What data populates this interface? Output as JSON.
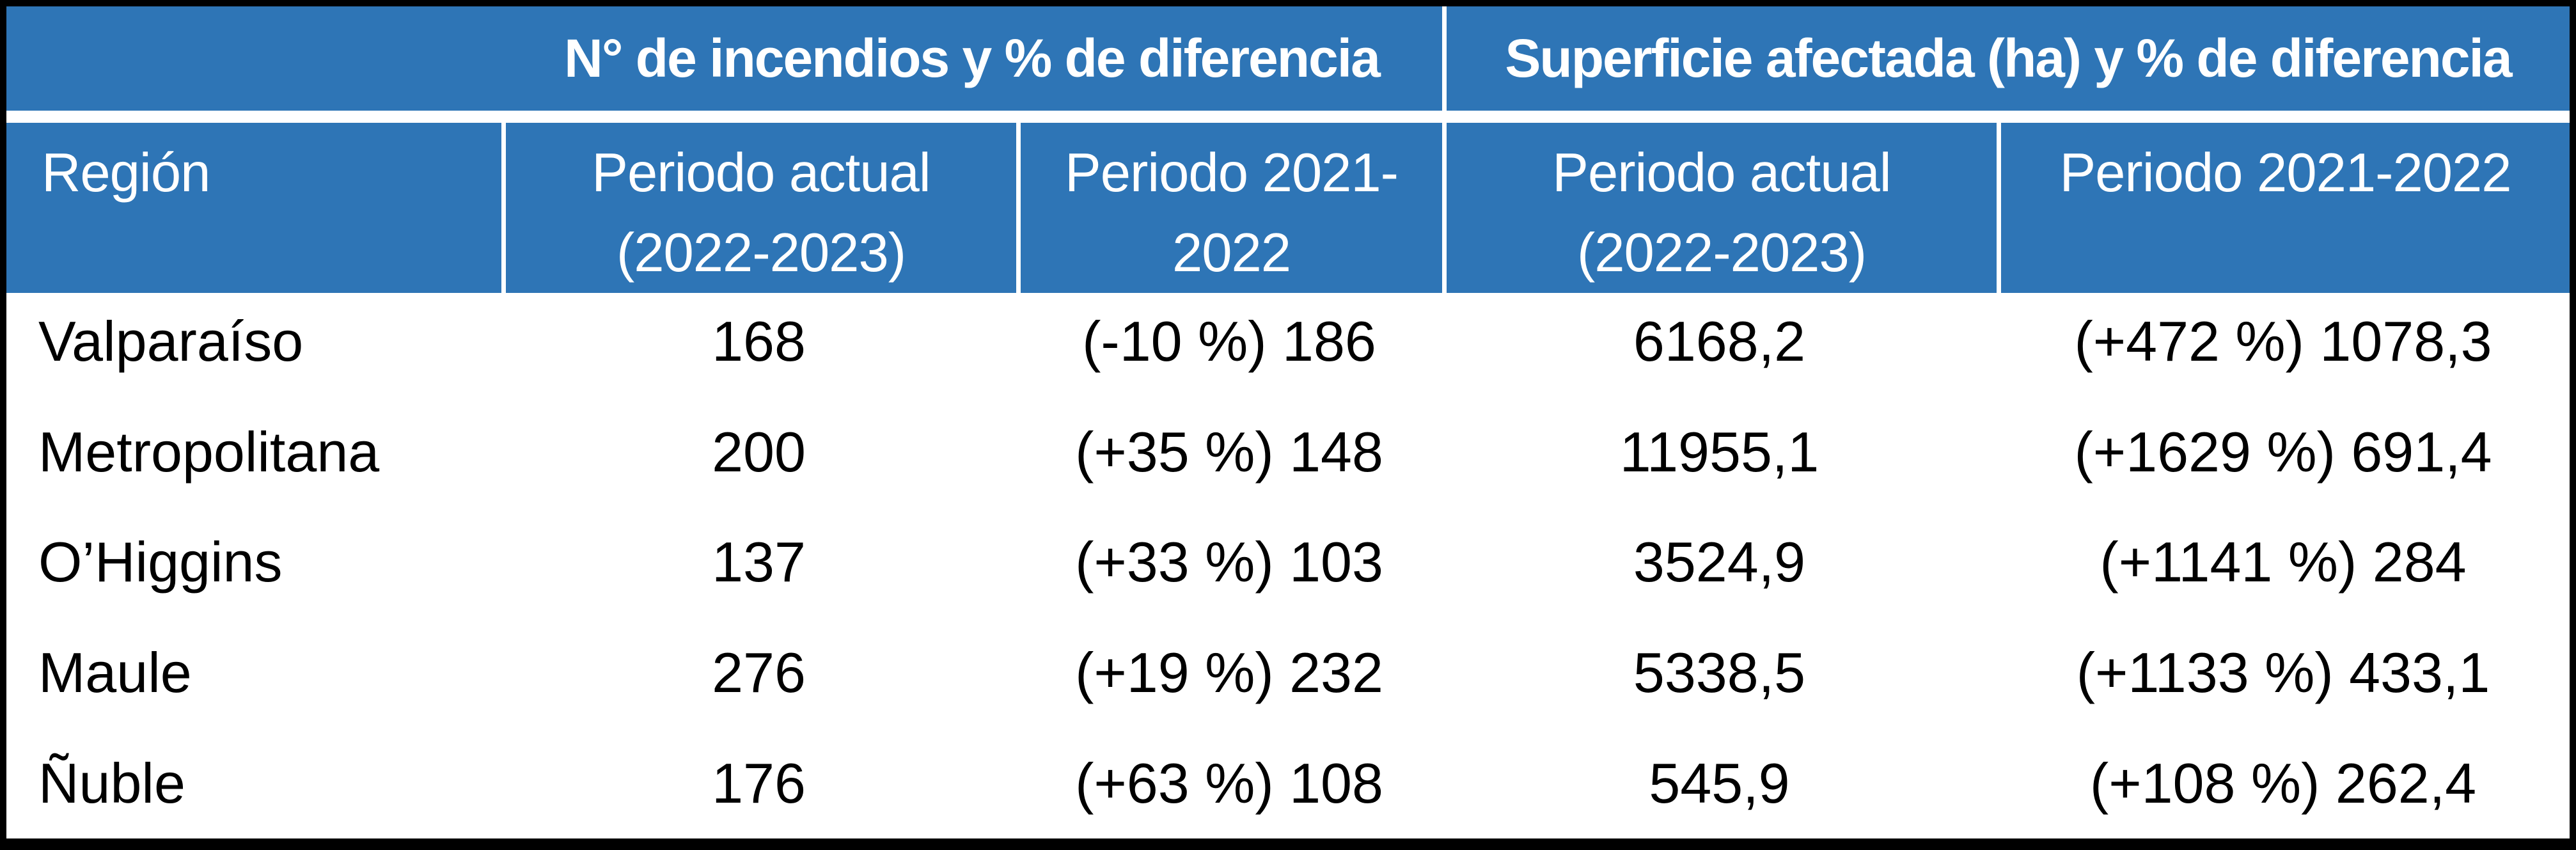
{
  "chart_data": {
    "type": "table",
    "group_headers": [
      "N° de incendios y % de diferencia",
      "Superficie afectada (ha) y % de diferencia"
    ],
    "columns": [
      "Región",
      "Periodo actual (2022-2023)",
      "Periodo 2021-2022",
      "Periodo actual (2022-2023)",
      "Periodo 2021-2022"
    ],
    "rows": [
      [
        "Valparaíso",
        "168",
        "(-10 %) 186",
        "6168,2",
        "(+472 %) 1078,3"
      ],
      [
        "Metropolitana",
        "200",
        "(+35 %) 148",
        "11955,1",
        "(+1629 %) 691,4"
      ],
      [
        "O’Higgins",
        "137",
        "(+33 %) 103",
        "3524,9",
        "(+1141 %) 284"
      ],
      [
        "Maule",
        "276",
        "(+19 %) 232",
        "5338,5",
        "(+1133 %) 433,1"
      ],
      [
        "Ñuble",
        "176",
        "(+63 %) 108",
        "545,9",
        "(+108 %) 262,4"
      ]
    ]
  },
  "header_lines": {
    "region": "Región",
    "col2": [
      "Periodo actual",
      "(2022-2023)"
    ],
    "col3": [
      "Periodo 2021-",
      "2022"
    ],
    "col4": [
      "Periodo actual",
      "(2022-2023)"
    ],
    "col5": [
      "Periodo 2021-2022"
    ]
  },
  "colors": {
    "header_blue": "#2E75B6",
    "border_black": "#000000",
    "header_text": "#FFFFFF",
    "body_text": "#000000"
  }
}
